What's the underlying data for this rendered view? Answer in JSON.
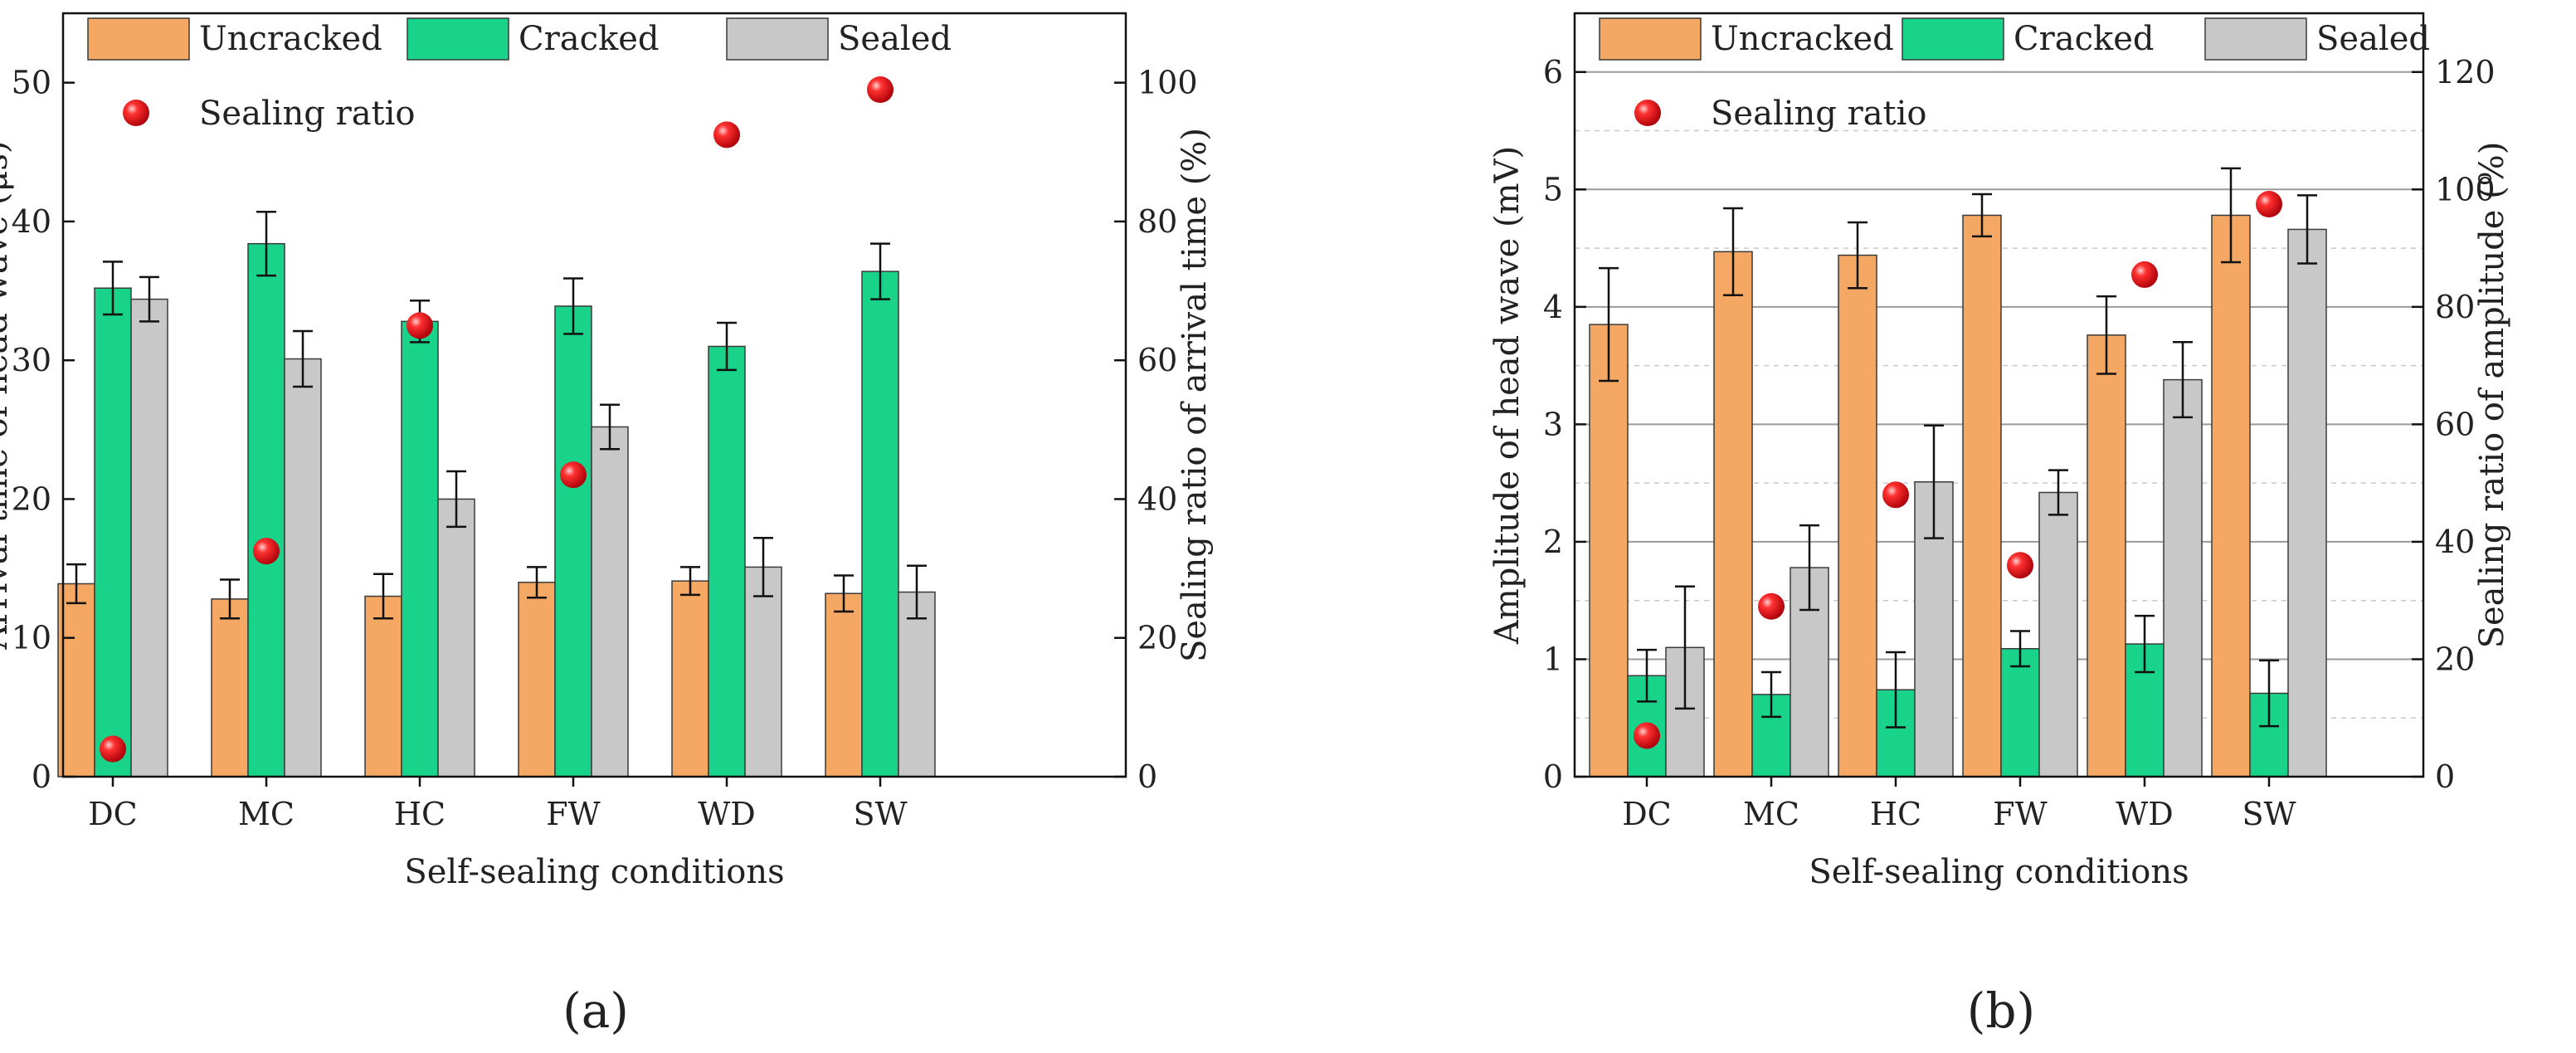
{
  "panel_labels": [
    "(a)",
    "(b)"
  ],
  "chart_data": [
    {
      "type": "bar",
      "panel": "(a)",
      "categories": [
        "DC",
        "MC",
        "HC",
        "FW",
        "WD",
        "SW"
      ],
      "series": [
        {
          "name": "Uncracked",
          "color": "#f4a864",
          "values": [
            13.9,
            12.8,
            13.0,
            14.0,
            14.1,
            13.2
          ],
          "errors": [
            1.4,
            1.4,
            1.6,
            1.1,
            1.0,
            1.3
          ]
        },
        {
          "name": "Cracked",
          "color": "#19d38b",
          "values": [
            35.2,
            38.4,
            32.8,
            33.9,
            31.0,
            36.4
          ],
          "errors": [
            1.9,
            2.3,
            1.5,
            2.0,
            1.7,
            2.0
          ]
        },
        {
          "name": "Sealed",
          "color": "#c8c8c8",
          "values": [
            34.4,
            30.1,
            20.0,
            25.2,
            15.1,
            13.3
          ],
          "errors": [
            1.6,
            2.0,
            2.0,
            1.6,
            2.1,
            1.9
          ]
        }
      ],
      "secondary_series": {
        "name": "Sealing ratio",
        "color": "#e8141e",
        "values": [
          4.0,
          32.5,
          65.0,
          43.5,
          92.5,
          99.0
        ]
      },
      "xlabel": "Self-sealing conditions",
      "ylabel": "Arrival time of head wave (μs)",
      "ylabel_right": "Sealing ratio of arrival time (%)",
      "ylim": [
        0,
        55
      ],
      "yticks": [
        "0",
        "10",
        "20",
        "30",
        "40",
        "50"
      ],
      "ylim_right": [
        0,
        110
      ],
      "yticks_right": [
        "0",
        "20",
        "40",
        "60",
        "80",
        "100"
      ],
      "grid": false
    },
    {
      "type": "bar",
      "panel": "(b)",
      "categories": [
        "DC",
        "MC",
        "HC",
        "FW",
        "WD",
        "SW"
      ],
      "series": [
        {
          "name": "Uncracked",
          "color": "#f4a864",
          "values": [
            3.85,
            4.47,
            4.44,
            4.78,
            3.76,
            4.78
          ],
          "errors": [
            0.48,
            0.37,
            0.28,
            0.18,
            0.33,
            0.4
          ]
        },
        {
          "name": "Cracked",
          "color": "#19d38b",
          "values": [
            0.86,
            0.7,
            0.74,
            1.09,
            1.13,
            0.71
          ],
          "errors": [
            0.22,
            0.19,
            0.32,
            0.15,
            0.24,
            0.28
          ]
        },
        {
          "name": "Sealed",
          "color": "#c8c8c8",
          "values": [
            1.1,
            1.78,
            2.51,
            2.42,
            3.38,
            4.66
          ],
          "errors": [
            0.52,
            0.36,
            0.48,
            0.19,
            0.32,
            0.29
          ]
        }
      ],
      "secondary_series": {
        "name": "Sealing ratio",
        "color": "#e8141e",
        "values": [
          7.0,
          29.0,
          48.0,
          36.0,
          85.5,
          97.5
        ]
      },
      "xlabel": "Self-sealing conditions",
      "ylabel": "Amplitude of head wave (mV)",
      "ylabel_right": "Sealing ratio of amplitude (%)",
      "ylim": [
        0,
        6.5
      ],
      "yticks": [
        "0",
        "1",
        "2",
        "3",
        "4",
        "5",
        "6"
      ],
      "ylim_right": [
        0,
        130
      ],
      "yticks_right": [
        "0",
        "20",
        "40",
        "60",
        "80",
        "100",
        "120"
      ],
      "grid": true
    }
  ]
}
